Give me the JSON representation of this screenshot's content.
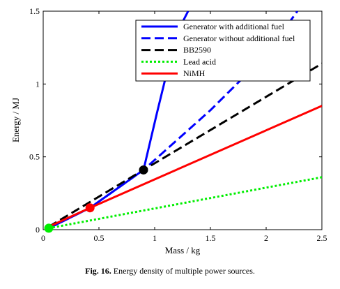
{
  "chart_data": {
    "type": "line",
    "title": "",
    "xlabel": "Mass / kg",
    "ylabel": "Energy / MJ",
    "xlim": [
      0,
      2.5
    ],
    "ylim": [
      0,
      1.5
    ],
    "xticks": [
      0,
      0.5,
      1,
      1.5,
      2,
      2.5
    ],
    "xtick_labels": [
      "0",
      "0.5",
      "1",
      "1.5",
      "2",
      "2.5"
    ],
    "yticks": [
      0,
      0.5,
      1,
      1.5
    ],
    "ytick_labels": [
      "0",
      "0.5",
      "1",
      "1.5"
    ],
    "grid": false,
    "legend_position": "top-right",
    "series": [
      {
        "name": "Generator with additional fuel",
        "color": "#0000ff",
        "style": "solid",
        "x": [
          0.05,
          0.42,
          0.9,
          1.02,
          1.1,
          1.2,
          1.3
        ],
        "y": [
          0.01,
          0.15,
          0.41,
          0.8,
          1.05,
          1.35,
          1.5
        ]
      },
      {
        "name": "Generator without additional fuel",
        "color": "#0000ff",
        "style": "dashed",
        "x": [
          0.05,
          0.42,
          0.9,
          1.5,
          2.0,
          2.28
        ],
        "y": [
          0.01,
          0.15,
          0.41,
          0.82,
          1.2,
          1.5
        ]
      },
      {
        "name": "BB2590",
        "color": "#000000",
        "style": "dashed",
        "x": [
          0.05,
          0.9,
          2.5
        ],
        "y": [
          0.02,
          0.41,
          1.14
        ]
      },
      {
        "name": "Lead acid",
        "color": "#00ee00",
        "style": "dotted",
        "x": [
          0.05,
          2.5
        ],
        "y": [
          0.01,
          0.36
        ]
      },
      {
        "name": "NiMH",
        "color": "#ff0000",
        "style": "solid",
        "x": [
          0.05,
          0.42,
          2.5
        ],
        "y": [
          0.02,
          0.15,
          0.85
        ]
      }
    ],
    "markers": [
      {
        "x": 0.9,
        "y": 0.41,
        "color": "#000000"
      },
      {
        "x": 0.42,
        "y": 0.15,
        "color": "#ff0000"
      },
      {
        "x": 0.05,
        "y": 0.01,
        "color": "#00ee00"
      }
    ]
  },
  "caption": {
    "label": "Fig. 16.",
    "text": "Energy density of multiple power sources."
  }
}
